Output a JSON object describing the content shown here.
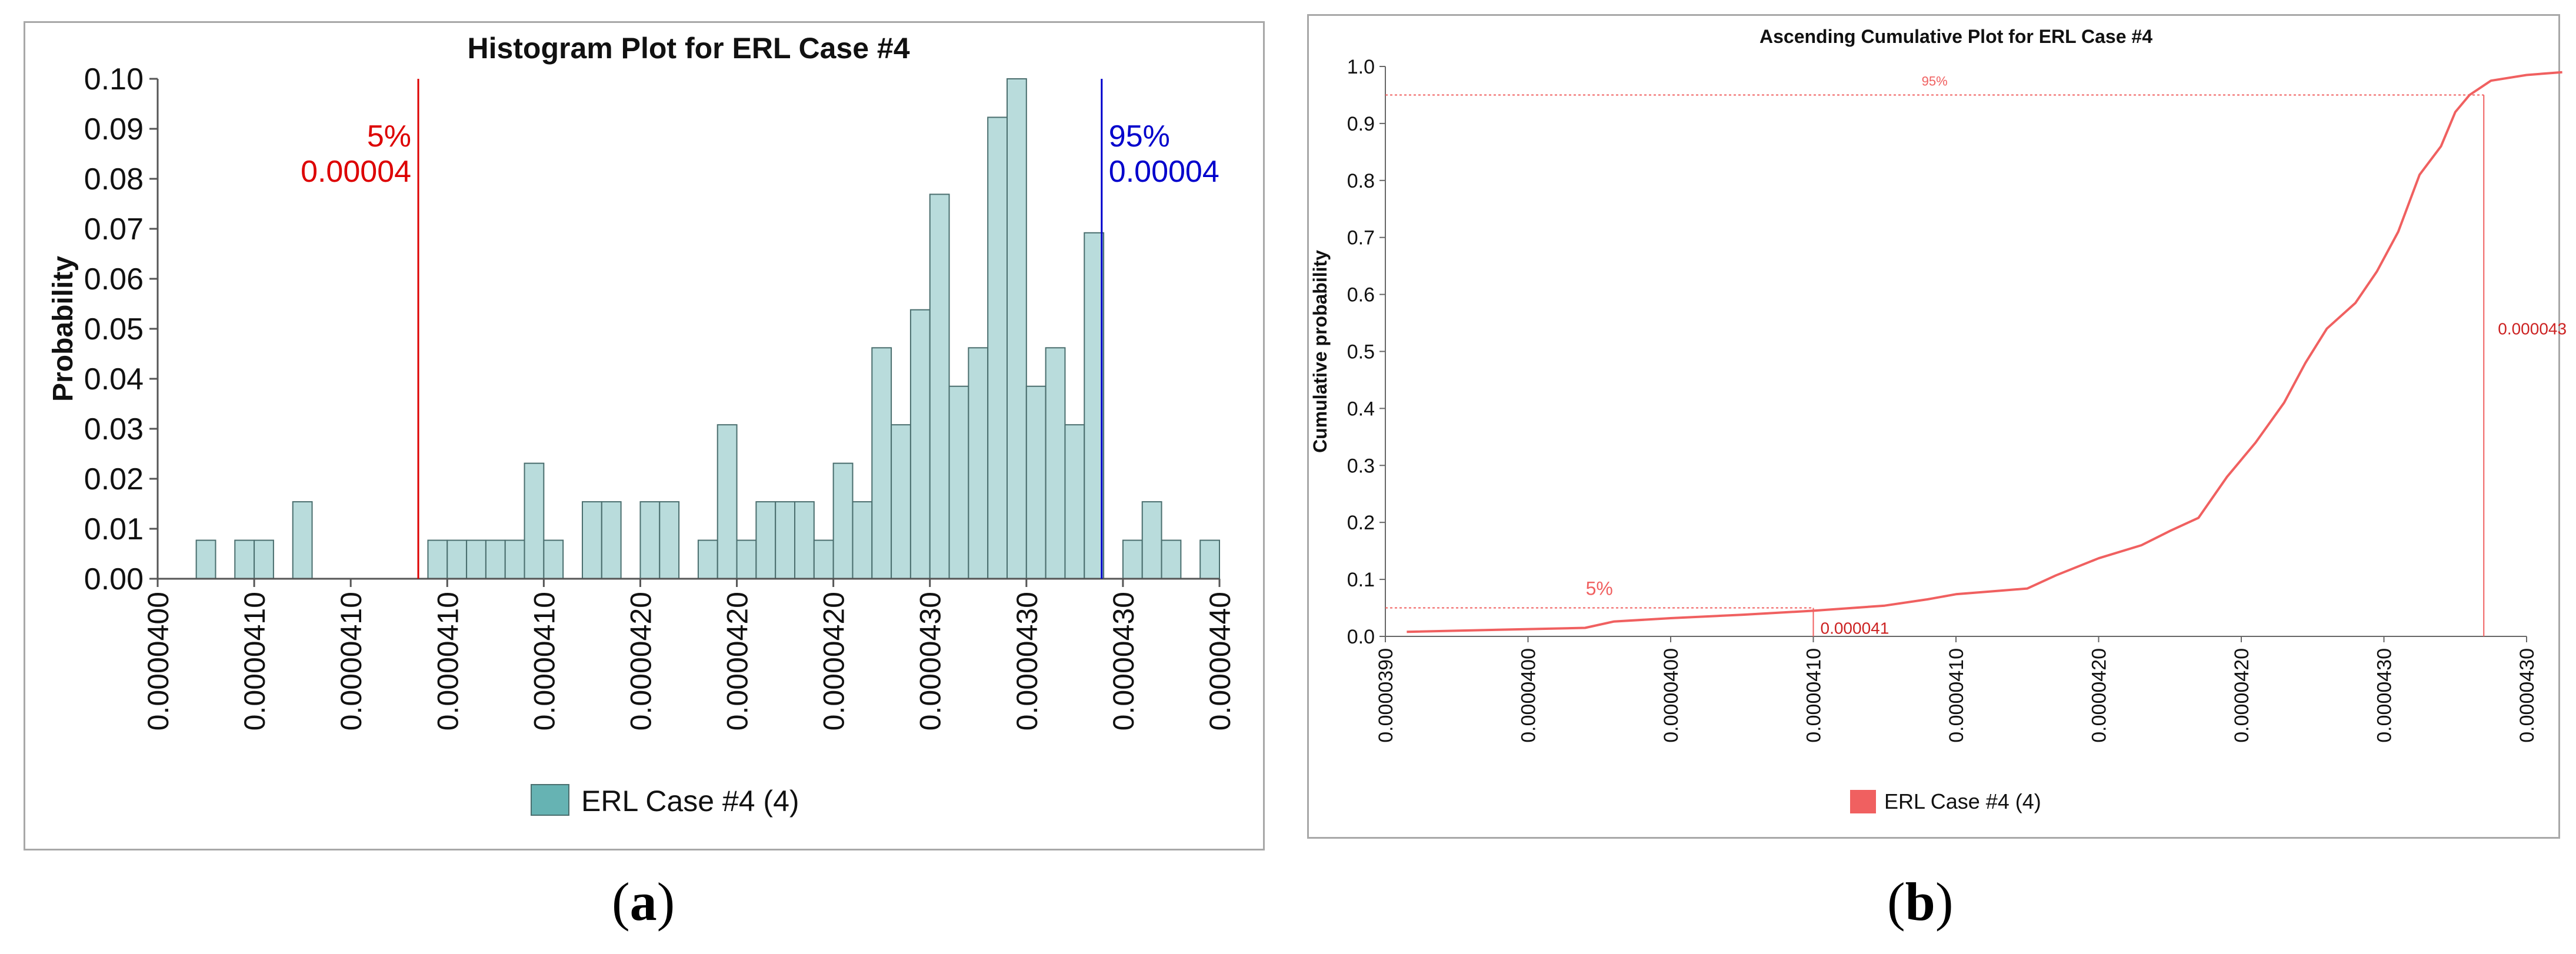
{
  "captions": {
    "a": "a",
    "b": "b"
  },
  "chart_data": [
    {
      "type": "bar",
      "title": "Histogram Plot for ERL Case #4",
      "ylabel": "Probability",
      "xlabel": "",
      "ylim": [
        0,
        0.1
      ],
      "yticks": [
        "0.00",
        "0.01",
        "0.02",
        "0.03",
        "0.04",
        "0.05",
        "0.06",
        "0.07",
        "0.08",
        "0.09",
        "0.10"
      ],
      "xticks": [
        "0.0000400",
        "0.0000410",
        "0.0000410",
        "0.0000410",
        "0.0000410",
        "0.0000420",
        "0.0000420",
        "0.0000420",
        "0.0000430",
        "0.0000430",
        "0.0000430",
        "0.0000440"
      ],
      "series_name": "ERL Case #4 (4)",
      "bar_color": "#b9dcdc",
      "bar_edge": "#4a6e6e",
      "legend_color": "#66b3b3",
      "bars": [
        0,
        0,
        0.0077,
        0,
        0.0077,
        0.0077,
        0,
        0.0154,
        0,
        0,
        0,
        0,
        0,
        0,
        0.0077,
        0.0077,
        0.0077,
        0.0077,
        0.0077,
        0.0231,
        0.0077,
        0,
        0.0154,
        0.0154,
        0,
        0.0154,
        0.0154,
        0,
        0.0077,
        0.0308,
        0.0077,
        0.0154,
        0.0154,
        0.0154,
        0.0077,
        0.0231,
        0.0154,
        0.0462,
        0.0308,
        0.0538,
        0.0769,
        0.0385,
        0.0462,
        0.0923,
        0.1,
        0.0385,
        0.0462,
        0.0308,
        0.0692,
        0,
        0.0077,
        0.0154,
        0.0077,
        0,
        0.0077
      ],
      "markers": [
        {
          "label": "5%",
          "value": "0.00004",
          "color": "#dd0000",
          "position_index": 13.5
        },
        {
          "label": "95%",
          "value": "0.00004",
          "color": "#0000cc",
          "position_index": 48.9
        }
      ]
    },
    {
      "type": "line",
      "title": "Ascending Cumulative Plot for ERL Case #4",
      "ylabel": "Cumulative  probability",
      "xlabel": "",
      "ylim": [
        0,
        1.0
      ],
      "yticks": [
        "0.0",
        "0.1",
        "0.2",
        "0.3",
        "0.4",
        "0.5",
        "0.6",
        "0.7",
        "0.8",
        "0.9",
        "1.0"
      ],
      "xticks": [
        "0.0000390",
        "0.0000400",
        "0.0000400",
        "0.0000410",
        "0.0000410",
        "0.0000420",
        "0.0000420",
        "0.0000430",
        "0.0000430"
      ],
      "series_name": "ERL Case #4 (4)",
      "line_color": "#f06060",
      "x_range": [
        0,
        8
      ],
      "points": [
        [
          0.15,
          0.008
        ],
        [
          1.4,
          0.015
        ],
        [
          1.6,
          0.026
        ],
        [
          2.0,
          0.032
        ],
        [
          2.5,
          0.038
        ],
        [
          3.0,
          0.045
        ],
        [
          3.5,
          0.054
        ],
        [
          3.8,
          0.065
        ],
        [
          4.0,
          0.074
        ],
        [
          4.3,
          0.08
        ],
        [
          4.5,
          0.084
        ],
        [
          4.7,
          0.107
        ],
        [
          5.0,
          0.137
        ],
        [
          5.3,
          0.16
        ],
        [
          5.5,
          0.185
        ],
        [
          5.7,
          0.208
        ],
        [
          5.9,
          0.28
        ],
        [
          6.1,
          0.34
        ],
        [
          6.3,
          0.41
        ],
        [
          6.45,
          0.48
        ],
        [
          6.6,
          0.54
        ],
        [
          6.8,
          0.585
        ],
        [
          6.95,
          0.64
        ],
        [
          7.1,
          0.71
        ],
        [
          7.25,
          0.81
        ],
        [
          7.4,
          0.86
        ],
        [
          7.5,
          0.92
        ],
        [
          7.6,
          0.95
        ],
        [
          7.75,
          0.975
        ],
        [
          8.0,
          0.985
        ],
        [
          8.25,
          0.99
        ]
      ],
      "p5": {
        "label": "5%",
        "value": "0.000041",
        "x": 3.0,
        "y": 0.05
      },
      "p95": {
        "label": "95%",
        "value": "0.000043",
        "x": 7.7,
        "y": 0.95
      }
    }
  ]
}
